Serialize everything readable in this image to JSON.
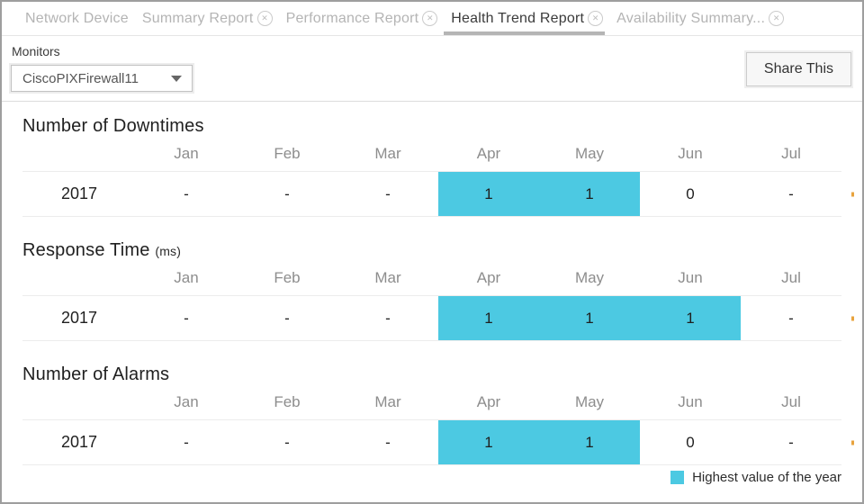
{
  "tabs": [
    {
      "label": "Network Device",
      "closable": false,
      "active": false
    },
    {
      "label": "Summary Report",
      "closable": true,
      "active": false
    },
    {
      "label": "Performance Report",
      "closable": true,
      "active": false
    },
    {
      "label": "Health Trend Report",
      "closable": true,
      "active": true
    },
    {
      "label": "Availability Summary...",
      "closable": true,
      "active": false
    }
  ],
  "toolbar": {
    "monitors_label": "Monitors",
    "monitor_selected": "CiscoPIXFirewall11",
    "share_button": "Share This"
  },
  "sections": [
    {
      "title": "Number of Downtimes",
      "unit": "",
      "columns": [
        "Jan",
        "Feb",
        "Mar",
        "Apr",
        "May",
        "Jun",
        "Jul"
      ],
      "rows": [
        {
          "year": "2017",
          "values": [
            "-",
            "-",
            "-",
            "1",
            "1",
            "0",
            "-"
          ],
          "highlighted": [
            false,
            false,
            false,
            true,
            true,
            false,
            false
          ]
        }
      ]
    },
    {
      "title": "Response Time",
      "unit": "(ms)",
      "columns": [
        "Jan",
        "Feb",
        "Mar",
        "Apr",
        "May",
        "Jun",
        "Jul"
      ],
      "rows": [
        {
          "year": "2017",
          "values": [
            "-",
            "-",
            "-",
            "1",
            "1",
            "1",
            "-"
          ],
          "highlighted": [
            false,
            false,
            false,
            true,
            true,
            true,
            false
          ]
        }
      ]
    },
    {
      "title": "Number of Alarms",
      "unit": "",
      "columns": [
        "Jan",
        "Feb",
        "Mar",
        "Apr",
        "May",
        "Jun",
        "Jul"
      ],
      "rows": [
        {
          "year": "2017",
          "values": [
            "-",
            "-",
            "-",
            "1",
            "1",
            "0",
            "-"
          ],
          "highlighted": [
            false,
            false,
            false,
            true,
            true,
            false,
            false
          ]
        }
      ]
    }
  ],
  "legend": {
    "label": "Highest value of the year"
  },
  "colors": {
    "highlight": "#4cc9e2",
    "cutoff": "#e8a33d"
  }
}
